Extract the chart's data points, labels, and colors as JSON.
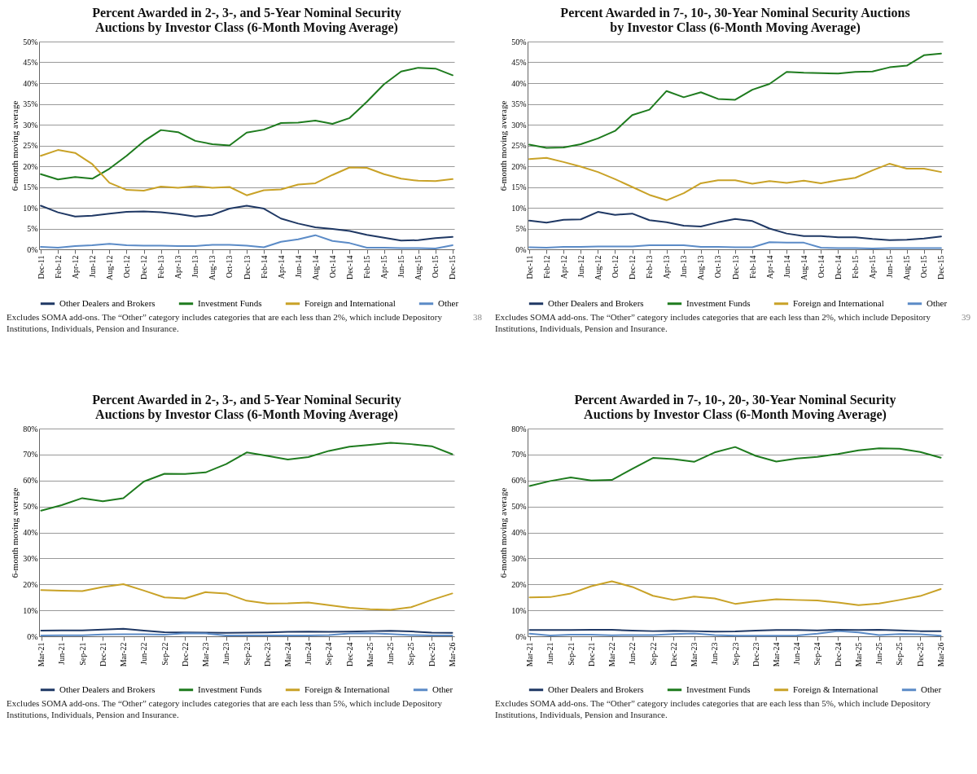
{
  "chart_data": [
    {
      "type": "line",
      "title": "Percent Awarded in 2-, 3-, and 5-Year Nominal Security Auctions by Investor Class (6-Month Moving Average)",
      "ylabel": "6-month moving average",
      "categories": [
        "Dec-11",
        "Feb-12",
        "Apr-12",
        "Jun-12",
        "Aug-12",
        "Oct-12",
        "Dec-12",
        "Feb-13",
        "Apr-13",
        "Jun-13",
        "Aug-13",
        "Oct-13",
        "Dec-13",
        "Feb-14",
        "Apr-14",
        "Jun-14",
        "Aug-14",
        "Oct-14",
        "Dec-14",
        "Feb-15",
        "Apr-15",
        "Jun-15",
        "Aug-15",
        "Oct-15",
        "Dec-15"
      ],
      "ylim": [
        0,
        50
      ],
      "yticks": [
        {
          "value": 0,
          "label": "0%"
        },
        {
          "value": 5,
          "label": "5%"
        },
        {
          "value": 10,
          "label": "10%"
        },
        {
          "value": 15,
          "label": "15%"
        },
        {
          "value": 20,
          "label": "20%"
        },
        {
          "value": 25,
          "label": "25%"
        },
        {
          "value": 30,
          "label": "30%"
        },
        {
          "value": 35,
          "label": "35%"
        },
        {
          "value": 40,
          "label": "40%"
        },
        {
          "value": 45,
          "label": "45%"
        },
        {
          "value": 50,
          "label": "50%"
        }
      ],
      "grid": "y",
      "legend": "bottom",
      "series": [
        {
          "name": "Other Dealers and Brokers",
          "color": "#1f3864",
          "values": [
            10.5,
            8.9,
            7.9,
            8.1,
            8.6,
            9.0,
            9.1,
            8.9,
            8.5,
            7.9,
            8.3,
            9.8,
            10.5,
            9.8,
            7.4,
            6.2,
            5.3,
            4.9,
            4.4,
            3.5,
            2.8,
            2.1,
            2.2,
            2.7,
            3.0
          ]
        },
        {
          "name": "Investment Funds",
          "color": "#1e7b1e",
          "values": [
            18.1,
            16.8,
            17.4,
            17.0,
            19.4,
            22.5,
            26.0,
            28.7,
            28.2,
            26.1,
            25.3,
            25.0,
            28.1,
            28.8,
            30.4,
            30.5,
            31.0,
            30.2,
            31.6,
            35.5,
            39.7,
            42.8,
            43.7,
            43.5,
            41.9
          ]
        },
        {
          "name": "Foreign and International",
          "color": "#c9a227",
          "values": [
            22.5,
            23.9,
            23.2,
            20.5,
            16.0,
            14.3,
            14.1,
            15.1,
            14.8,
            15.2,
            14.8,
            15.0,
            13.0,
            14.2,
            14.4,
            15.6,
            15.9,
            17.9,
            19.7,
            19.6,
            18.1,
            17.0,
            16.5,
            16.4,
            16.9
          ]
        },
        {
          "name": "Other",
          "color": "#5b8bc7",
          "values": [
            0.6,
            0.4,
            0.8,
            1.0,
            1.3,
            1.0,
            0.9,
            0.9,
            0.8,
            0.8,
            1.1,
            1.1,
            0.9,
            0.5,
            1.8,
            2.4,
            3.4,
            2.0,
            1.5,
            0.4,
            0.4,
            0.3,
            0.3,
            0.2,
            1.0
          ]
        }
      ],
      "annotations": [
        "Excludes SOMA add-ons.  The “Other” category includes categories that are each less than 2%, which include Depository Institutions, Individuals, Pension and Insurance.",
        "38"
      ]
    },
    {
      "type": "line",
      "title": "Percent Awarded in 7-, 10-, 30-Year Nominal Security Auctions by Investor Class (6-Month Moving Average)",
      "ylabel": "6-month moving average",
      "categories": [
        "Dec-11",
        "Feb-12",
        "Apr-12",
        "Jun-12",
        "Aug-12",
        "Oct-12",
        "Dec-12",
        "Feb-13",
        "Apr-13",
        "Jun-13",
        "Aug-13",
        "Oct-13",
        "Dec-13",
        "Feb-14",
        "Apr-14",
        "Jun-14",
        "Aug-14",
        "Oct-14",
        "Dec-14",
        "Feb-15",
        "Apr-15",
        "Jun-15",
        "Aug-15",
        "Oct-15",
        "Dec-15"
      ],
      "ylim": [
        0,
        50
      ],
      "yticks": [
        {
          "value": 0,
          "label": "0%"
        },
        {
          "value": 5,
          "label": "5%"
        },
        {
          "value": 10,
          "label": "10%"
        },
        {
          "value": 15,
          "label": "15%"
        },
        {
          "value": 20,
          "label": "20%"
        },
        {
          "value": 25,
          "label": "25%"
        },
        {
          "value": 30,
          "label": "30%"
        },
        {
          "value": 35,
          "label": "35%"
        },
        {
          "value": 40,
          "label": "40%"
        },
        {
          "value": 45,
          "label": "45%"
        },
        {
          "value": 50,
          "label": "50%"
        }
      ],
      "grid": "y",
      "legend": "bottom",
      "series": [
        {
          "name": "Other Dealers and Brokers",
          "color": "#1f3864",
          "values": [
            6.9,
            6.4,
            7.1,
            7.2,
            9.0,
            8.3,
            8.6,
            7.0,
            6.5,
            5.7,
            5.5,
            6.5,
            7.3,
            6.8,
            5.0,
            3.8,
            3.2,
            3.2,
            2.9,
            2.9,
            2.5,
            2.2,
            2.3,
            2.6,
            3.1
          ]
        },
        {
          "name": "Investment Funds",
          "color": "#1e7b1e",
          "values": [
            25.2,
            24.4,
            24.5,
            25.3,
            26.7,
            28.5,
            32.3,
            33.6,
            38.1,
            36.6,
            37.8,
            36.2,
            36.0,
            38.4,
            39.8,
            42.7,
            42.5,
            42.4,
            42.3,
            42.7,
            42.8,
            43.8,
            44.2,
            46.7,
            47.1
          ]
        },
        {
          "name": "Foreign and International",
          "color": "#c9a227",
          "values": [
            21.7,
            22.0,
            21.0,
            19.9,
            18.6,
            16.9,
            15.0,
            13.1,
            11.8,
            13.5,
            15.9,
            16.6,
            16.6,
            15.8,
            16.4,
            16.0,
            16.5,
            15.9,
            16.6,
            17.2,
            19.0,
            20.6,
            19.4,
            19.4,
            18.6
          ]
        },
        {
          "name": "Other",
          "color": "#5b8bc7",
          "values": [
            0.5,
            0.4,
            0.6,
            0.6,
            0.7,
            0.7,
            0.7,
            1.0,
            1.0,
            1.0,
            0.6,
            0.6,
            0.5,
            0.5,
            1.7,
            1.6,
            1.6,
            0.4,
            0.3,
            0.3,
            0.2,
            0.3,
            0.3,
            0.3,
            0.3
          ]
        }
      ],
      "annotations": [
        "Excludes SOMA add-ons.  The “Other” category includes categories that are each less than 2%, which include Depository Institutions, Individuals, Pension and Insurance.",
        "39"
      ]
    },
    {
      "type": "line",
      "title": "Percent Awarded in 2-, 3-, and 5-Year Nominal Security Auctions by Investor Class (6-Month Moving Average)",
      "ylabel": "6-month moving average",
      "categories": [
        "Mar-21",
        "Jun-21",
        "Sep-21",
        "Dec-21",
        "Mar-22",
        "Jun-22",
        "Sep-22",
        "Dec-22",
        "Mar-23",
        "Jun-23",
        "Sep-23",
        "Dec-23",
        "Mar-24",
        "Jun-24",
        "Sep-24",
        "Dec-24",
        "Mar-25",
        "Jun-25",
        "Sep-25",
        "Dec-25",
        "Mar-26"
      ],
      "ylim": [
        0,
        80
      ],
      "yticks": [
        {
          "value": 0,
          "label": "0%"
        },
        {
          "value": 10,
          "label": "10%"
        },
        {
          "value": 20,
          "label": "20%"
        },
        {
          "value": 30,
          "label": "30%"
        },
        {
          "value": 40,
          "label": "40%"
        },
        {
          "value": 50,
          "label": "50%"
        },
        {
          "value": 60,
          "label": "60%"
        },
        {
          "value": 70,
          "label": "70%"
        },
        {
          "value": 80,
          "label": "80%"
        }
      ],
      "grid": "y",
      "legend": "bottom",
      "series": [
        {
          "name": "Other Dealers and Brokers",
          "color": "#1f3864",
          "values": [
            2.2,
            2.3,
            2.3,
            2.6,
            2.9,
            2.2,
            1.6,
            1.5,
            1.4,
            1.3,
            1.4,
            1.5,
            1.7,
            1.8,
            1.7,
            1.8,
            2.0,
            2.1,
            1.9,
            1.4,
            1.3
          ]
        },
        {
          "name": "Investment Funds",
          "color": "#1e7b1e",
          "values": [
            48.4,
            50.5,
            53.2,
            52.0,
            53.2,
            59.6,
            62.6,
            62.5,
            63.1,
            66.3,
            70.8,
            69.5,
            68.1,
            69.0,
            71.4,
            73.0,
            73.7,
            74.5,
            74.0,
            73.2,
            70.1
          ]
        },
        {
          "name": "Foreign & International",
          "color": "#c9a227",
          "values": [
            17.8,
            17.6,
            17.4,
            19.0,
            20.1,
            17.6,
            15.0,
            14.6,
            17.0,
            16.5,
            13.7,
            12.6,
            12.7,
            13.0,
            12.0,
            11.0,
            10.4,
            10.2,
            11.2,
            14.0,
            16.5
          ]
        },
        {
          "name": "Other",
          "color": "#5b8bc7",
          "values": [
            0.3,
            0.4,
            0.4,
            0.7,
            0.8,
            0.8,
            0.6,
            1.2,
            1.1,
            0.3,
            0.3,
            0.3,
            0.3,
            0.3,
            0.5,
            1.1,
            1.2,
            0.9,
            0.5,
            0.3,
            0.3
          ]
        }
      ],
      "annotations": [
        "Excludes SOMA add-ons. The “Other” category includes categories that are each less than 5%, which include Depository Institutions, Individuals, Pension and Insurance."
      ]
    },
    {
      "type": "line",
      "title": "Percent Awarded in 7-, 10-, 20-, 30-Year Nominal Security Auctions by Investor Class (6-Month Moving Average)",
      "ylabel": "6-month moving average",
      "categories": [
        "Mar-21",
        "Jun-21",
        "Sep-21",
        "Dec-21",
        "Mar-22",
        "Jun-22",
        "Sep-22",
        "Dec-22",
        "Mar-23",
        "Jun-23",
        "Sep-23",
        "Dec-23",
        "Mar-24",
        "Jun-24",
        "Sep-24",
        "Dec-24",
        "Mar-25",
        "Jun-25",
        "Sep-25",
        "Dec-25",
        "Mar-26"
      ],
      "ylim": [
        0,
        80
      ],
      "yticks": [
        {
          "value": 0,
          "label": "0%"
        },
        {
          "value": 10,
          "label": "10%"
        },
        {
          "value": 20,
          "label": "20%"
        },
        {
          "value": 30,
          "label": "30%"
        },
        {
          "value": 40,
          "label": "40%"
        },
        {
          "value": 50,
          "label": "50%"
        },
        {
          "value": 60,
          "label": "60%"
        },
        {
          "value": 70,
          "label": "70%"
        },
        {
          "value": 80,
          "label": "80%"
        }
      ],
      "grid": "y",
      "legend": "bottom",
      "series": [
        {
          "name": "Other Dealers and Brokers",
          "color": "#1f3864",
          "values": [
            2.4,
            2.4,
            2.4,
            2.5,
            2.5,
            2.2,
            2.0,
            2.1,
            2.0,
            1.8,
            1.9,
            2.2,
            2.4,
            2.4,
            2.3,
            2.5,
            2.4,
            2.5,
            2.3,
            2.0,
            2.0
          ]
        },
        {
          "name": "Investment Funds",
          "color": "#1e7b1e",
          "values": [
            57.9,
            59.8,
            61.2,
            60.0,
            60.2,
            64.5,
            68.7,
            68.2,
            67.2,
            70.8,
            72.9,
            69.5,
            67.3,
            68.5,
            69.1,
            70.2,
            71.6,
            72.4,
            72.2,
            71.0,
            68.8
          ]
        },
        {
          "name": "Foreign & International",
          "color": "#c9a227",
          "values": [
            15.0,
            15.1,
            16.5,
            19.3,
            21.2,
            19.0,
            15.6,
            14.0,
            15.3,
            14.6,
            12.5,
            13.5,
            14.3,
            14.0,
            13.8,
            13.0,
            12.0,
            12.6,
            14.0,
            15.5,
            18.2
          ]
        },
        {
          "name": "Other",
          "color": "#5b8bc7",
          "values": [
            1.0,
            0.3,
            0.6,
            0.6,
            0.4,
            0.5,
            0.5,
            0.9,
            1.1,
            0.5,
            0.2,
            0.2,
            0.2,
            0.3,
            1.0,
            2.0,
            1.5,
            0.5,
            0.9,
            0.8,
            0.2
          ]
        }
      ],
      "annotations": [
        "Excludes SOMA add-ons. The “Other” category includes categories that are each less than 5%, which include Depository Institutions, Individuals, Pension and Insurance."
      ]
    }
  ]
}
